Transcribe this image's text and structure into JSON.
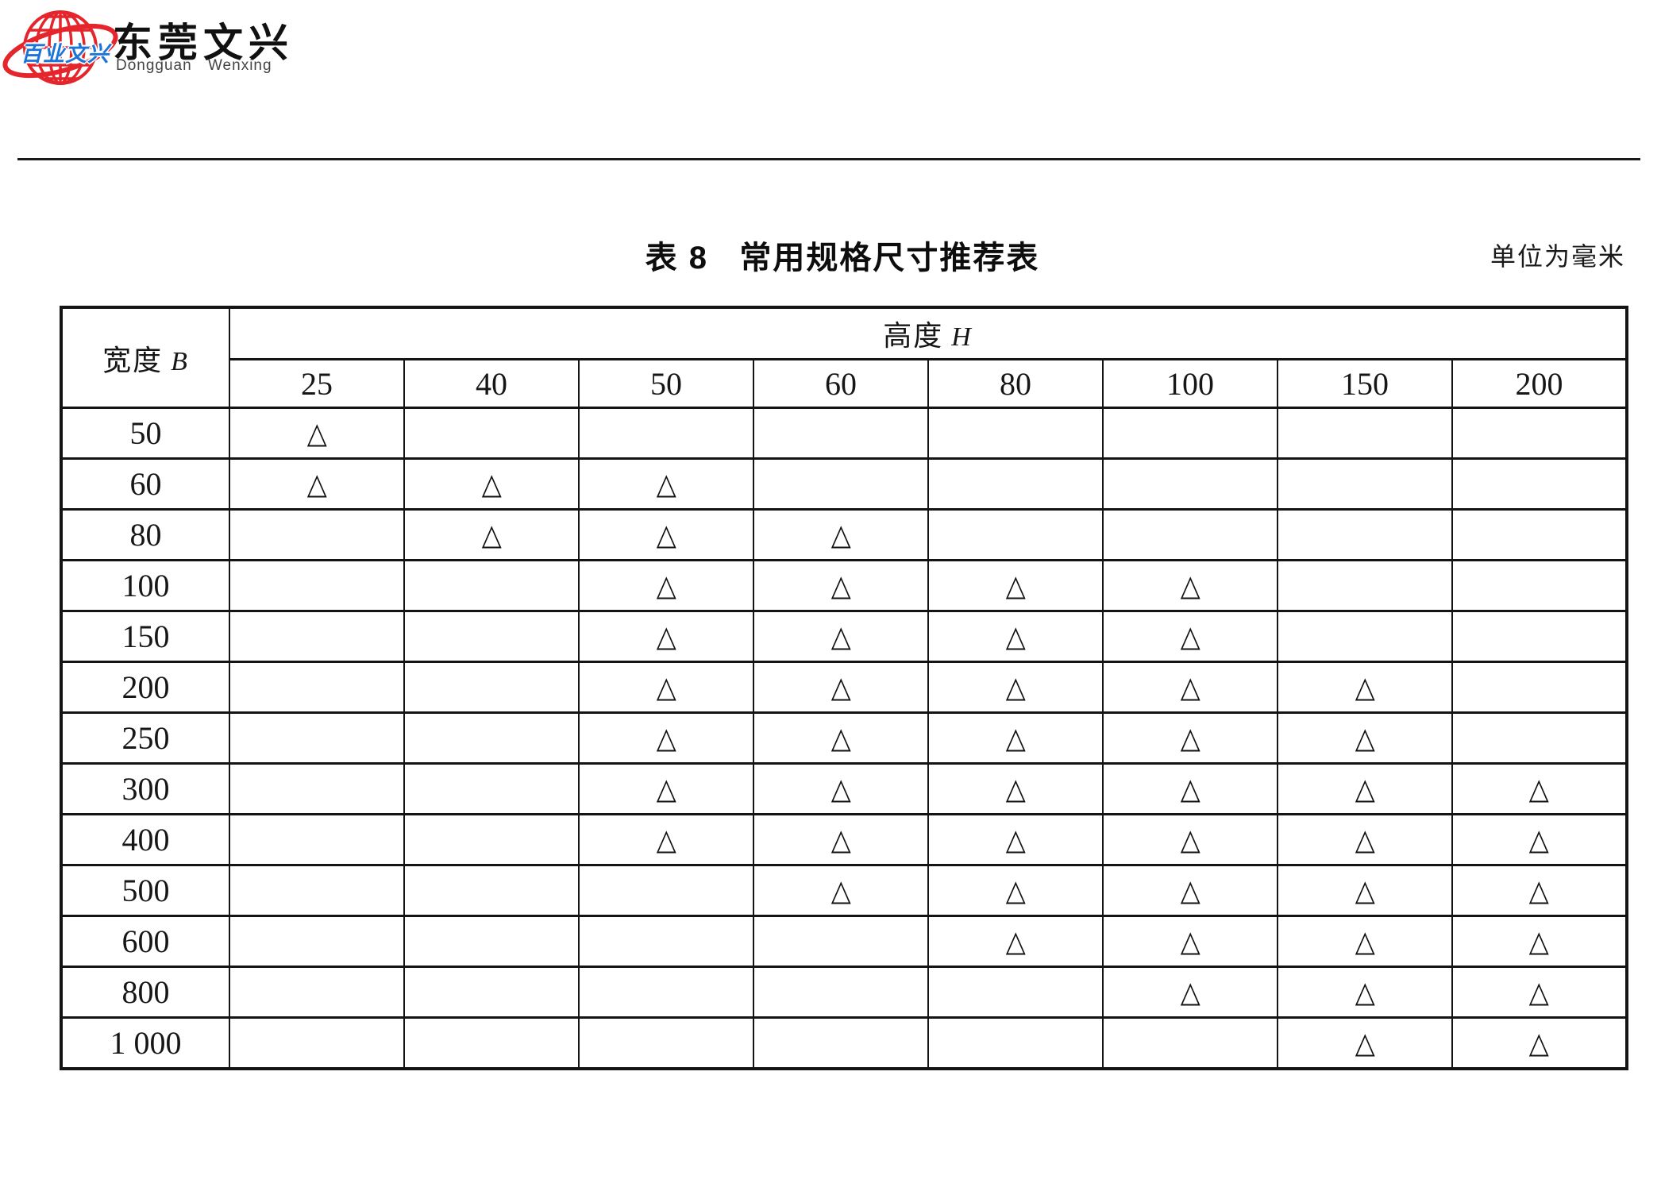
{
  "logo": {
    "globe_text": "百业文兴",
    "name_cn": "东莞文兴",
    "name_en": "Dongguan Wenxing",
    "globe_color": "#e5252c",
    "overlay_text_color": "#1c74d9"
  },
  "title": "表 8   常用规格尺寸推荐表",
  "unit_label": "单位为毫米",
  "table": {
    "corner_label": "宽度",
    "corner_var": "B",
    "span_label": "高度",
    "span_var": "H",
    "col_headers": [
      "25",
      "40",
      "50",
      "60",
      "80",
      "100",
      "150",
      "200"
    ],
    "mark_glyph": "△",
    "rows": [
      {
        "label": "50",
        "marks": [
          1,
          0,
          0,
          0,
          0,
          0,
          0,
          0
        ]
      },
      {
        "label": "60",
        "marks": [
          1,
          1,
          1,
          0,
          0,
          0,
          0,
          0
        ]
      },
      {
        "label": "80",
        "marks": [
          0,
          1,
          1,
          1,
          0,
          0,
          0,
          0
        ]
      },
      {
        "label": "100",
        "marks": [
          0,
          0,
          1,
          1,
          1,
          1,
          0,
          0
        ]
      },
      {
        "label": "150",
        "marks": [
          0,
          0,
          1,
          1,
          1,
          1,
          0,
          0
        ]
      },
      {
        "label": "200",
        "marks": [
          0,
          0,
          1,
          1,
          1,
          1,
          1,
          0
        ]
      },
      {
        "label": "250",
        "marks": [
          0,
          0,
          1,
          1,
          1,
          1,
          1,
          0
        ]
      },
      {
        "label": "300",
        "marks": [
          0,
          0,
          1,
          1,
          1,
          1,
          1,
          1
        ]
      },
      {
        "label": "400",
        "marks": [
          0,
          0,
          1,
          1,
          1,
          1,
          1,
          1
        ]
      },
      {
        "label": "500",
        "marks": [
          0,
          0,
          0,
          1,
          1,
          1,
          1,
          1
        ]
      },
      {
        "label": "600",
        "marks": [
          0,
          0,
          0,
          0,
          1,
          1,
          1,
          1
        ]
      },
      {
        "label": "800",
        "marks": [
          0,
          0,
          0,
          0,
          0,
          1,
          1,
          1
        ]
      },
      {
        "label": "1 000",
        "marks": [
          0,
          0,
          0,
          0,
          0,
          0,
          1,
          1
        ]
      }
    ]
  }
}
